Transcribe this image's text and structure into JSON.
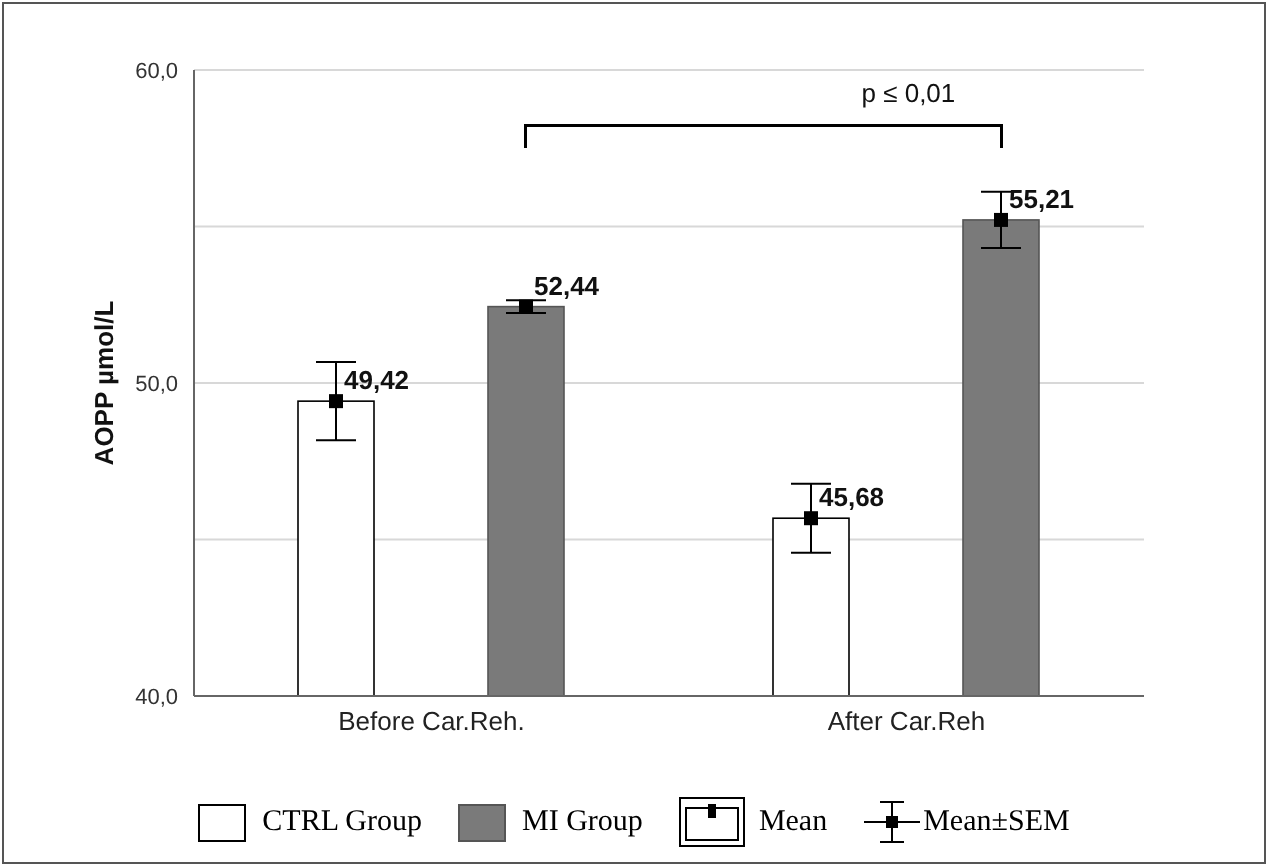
{
  "chart_data": {
    "type": "bar",
    "ylabel": "AOPP  µmol/L",
    "categories": [
      "Before Car.Reh.",
      "After Car.Reh"
    ],
    "series": [
      {
        "name": "CTRL Group",
        "color": "#ffffff",
        "values": [
          49.42,
          45.68
        ],
        "errors": [
          1.25,
          1.1
        ],
        "value_labels": [
          "49,42",
          "45,68"
        ]
      },
      {
        "name": "MI Group",
        "color": "#7a7a7a",
        "values": [
          52.44,
          55.21
        ],
        "errors": [
          0.2,
          0.9
        ],
        "value_labels": [
          "52,44",
          "55,21"
        ]
      }
    ],
    "ylim": [
      40,
      60
    ],
    "yticks": [
      {
        "value": 40,
        "label": "40,0"
      },
      {
        "value": 45,
        "label": null
      },
      {
        "value": 50,
        "label": "50,0"
      },
      {
        "value": 55,
        "label": null
      },
      {
        "value": 60,
        "label": "60,0"
      }
    ],
    "grid": "y",
    "legend": "bottom",
    "marker": "square",
    "annotations": [
      "p ≤ 0,01",
      "Mean",
      "Mean±SEM"
    ]
  }
}
